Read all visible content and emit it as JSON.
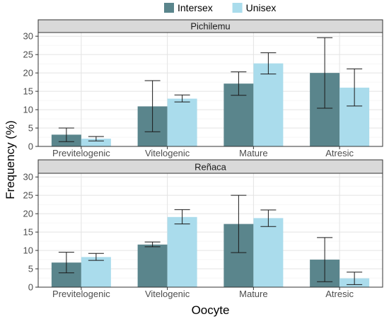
{
  "chart_data": {
    "type": "bar",
    "xlabel": "Oocyte",
    "ylabel": "Frequency (%)",
    "ylim": [
      0,
      31
    ],
    "yticks": [
      0,
      5,
      10,
      15,
      20,
      25,
      30
    ],
    "grid": true,
    "legend_position": "top",
    "categories": [
      "Previtelogenic",
      "Vitelogenic",
      "Mature",
      "Atresic"
    ],
    "series_meta": [
      {
        "name": "Intersex",
        "color": "#5a858c"
      },
      {
        "name": "Unisex",
        "color": "#aadcec"
      }
    ],
    "panels": [
      {
        "title": "Pichilemu",
        "series": [
          {
            "name": "Intersex",
            "values": [
              3.2,
              10.9,
              17.1,
              20.0
            ],
            "error_low": [
              1.3,
              4.0,
              13.9,
              10.4
            ],
            "error_high": [
              5.0,
              17.9,
              20.3,
              29.6
            ]
          },
          {
            "name": "Unisex",
            "values": [
              2.1,
              13.0,
              22.6,
              16.0
            ],
            "error_low": [
              1.5,
              12.1,
              19.7,
              11.0
            ],
            "error_high": [
              2.7,
              14.0,
              25.5,
              21.1
            ]
          }
        ]
      },
      {
        "title": "Reñaca",
        "series": [
          {
            "name": "Intersex",
            "values": [
              6.7,
              11.6,
              17.2,
              7.5
            ],
            "error_low": [
              3.9,
              11.0,
              9.4,
              1.5
            ],
            "error_high": [
              9.5,
              12.3,
              25.0,
              13.5
            ]
          },
          {
            "name": "Unisex",
            "values": [
              8.2,
              19.1,
              18.8,
              2.4
            ],
            "error_low": [
              7.3,
              17.2,
              16.5,
              0.7
            ],
            "error_high": [
              9.2,
              21.1,
              21.0,
              4.1
            ]
          }
        ]
      }
    ]
  }
}
